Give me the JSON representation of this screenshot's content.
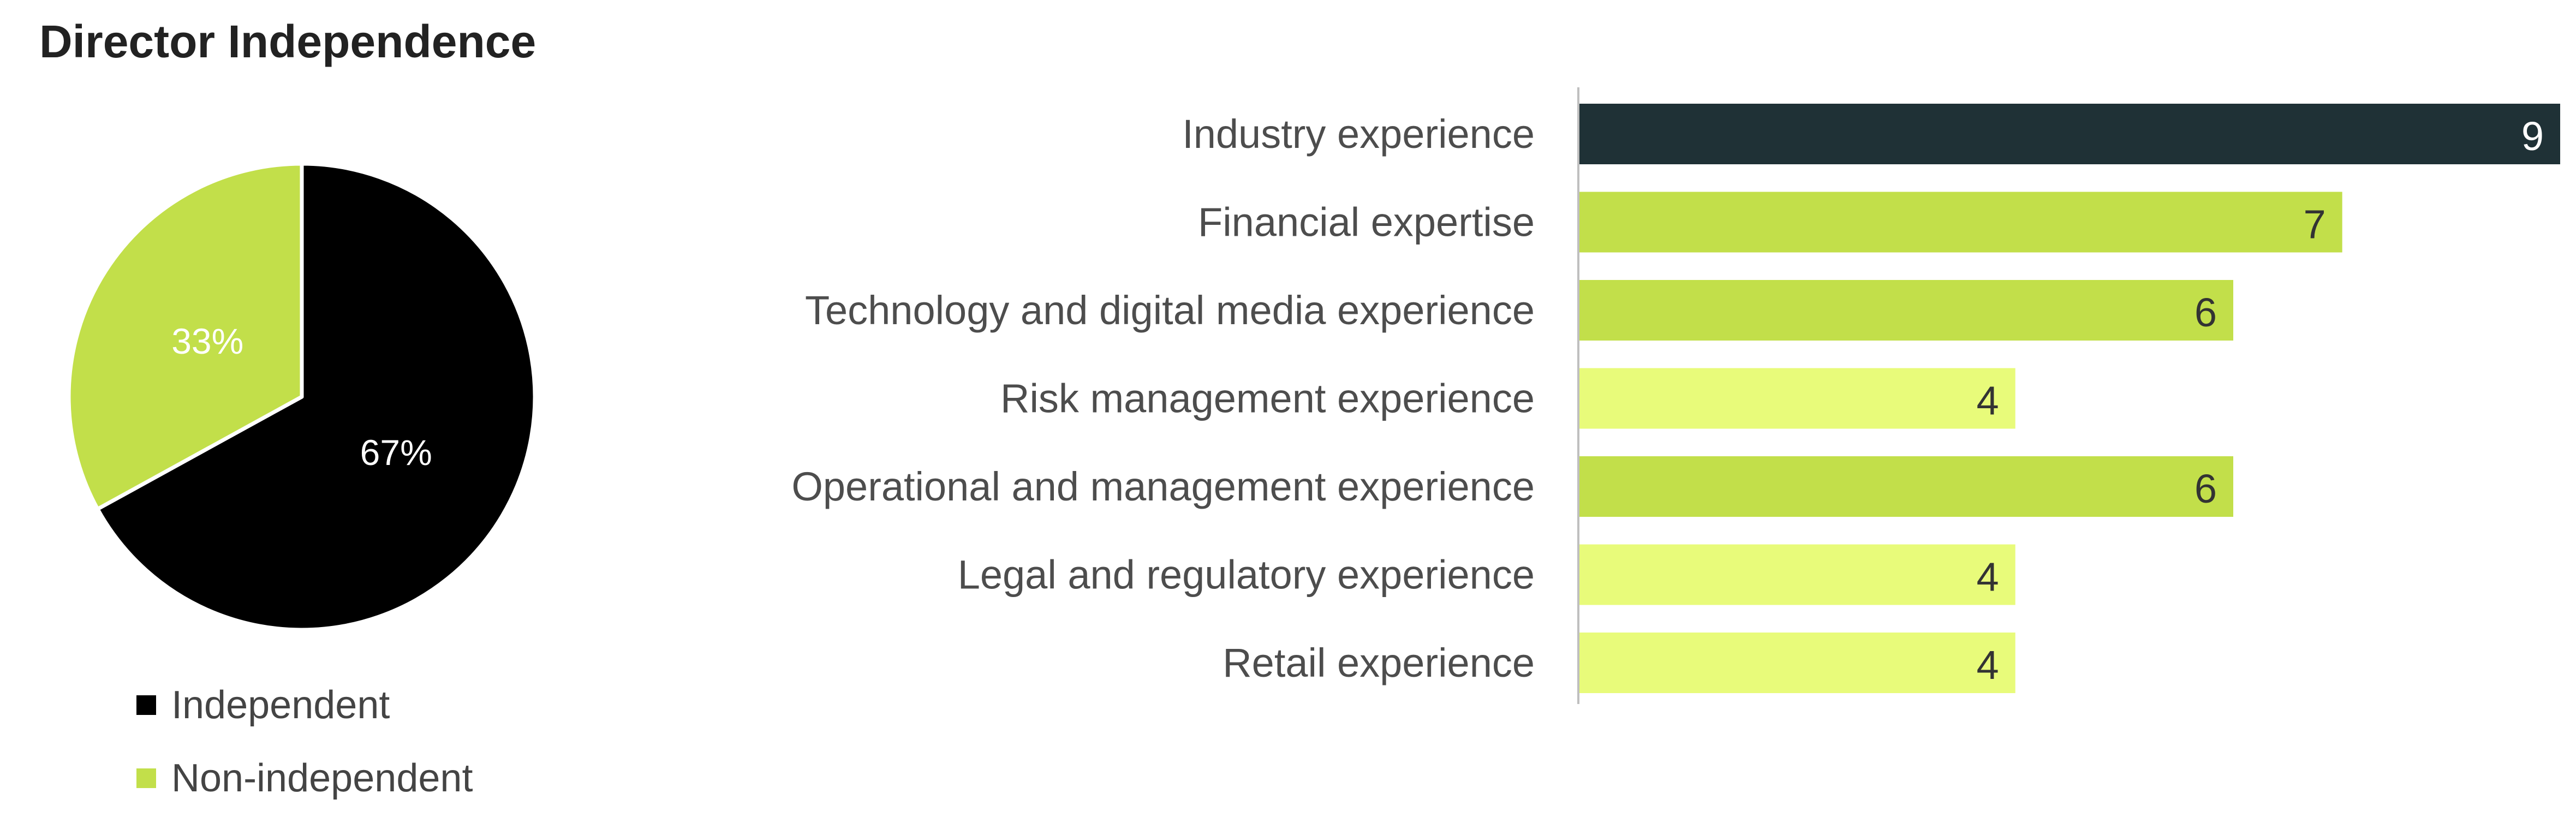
{
  "chart_data": [
    {
      "type": "pie",
      "title": "Director Independence",
      "slices": [
        {
          "label": "Independent",
          "value": 67,
          "display": "67%",
          "color": "#000000",
          "text_color": "#ffffff"
        },
        {
          "label": "Non-independent",
          "value": 33,
          "display": "33%",
          "color": "#c2df4a",
          "text_color": "#ffffff"
        }
      ],
      "legend_position": "bottom-left"
    },
    {
      "type": "bar",
      "orientation": "horizontal",
      "categories": [
        "Industry experience",
        "Financial expertise",
        "Technology and digital media experience",
        "Risk management experience",
        "Operational and management experience",
        "Legal and regulatory experience",
        "Retail experience"
      ],
      "values": [
        9,
        7,
        6,
        4,
        6,
        4,
        4
      ],
      "bar_colors": [
        "#1f3136",
        "#c2df4a",
        "#c2df4a",
        "#e8fb7a",
        "#c2df4a",
        "#e8fb7a",
        "#e8fb7a"
      ],
      "label_colors": [
        "#ffffff",
        "#333333",
        "#333333",
        "#333333",
        "#333333",
        "#333333",
        "#333333"
      ],
      "xlim": [
        0,
        9
      ],
      "data_labels": true,
      "grid": false
    }
  ],
  "colors": {
    "axis_line": "#bfbfbf",
    "category_text": "#4d4d4d",
    "legend_text": "#444444"
  }
}
